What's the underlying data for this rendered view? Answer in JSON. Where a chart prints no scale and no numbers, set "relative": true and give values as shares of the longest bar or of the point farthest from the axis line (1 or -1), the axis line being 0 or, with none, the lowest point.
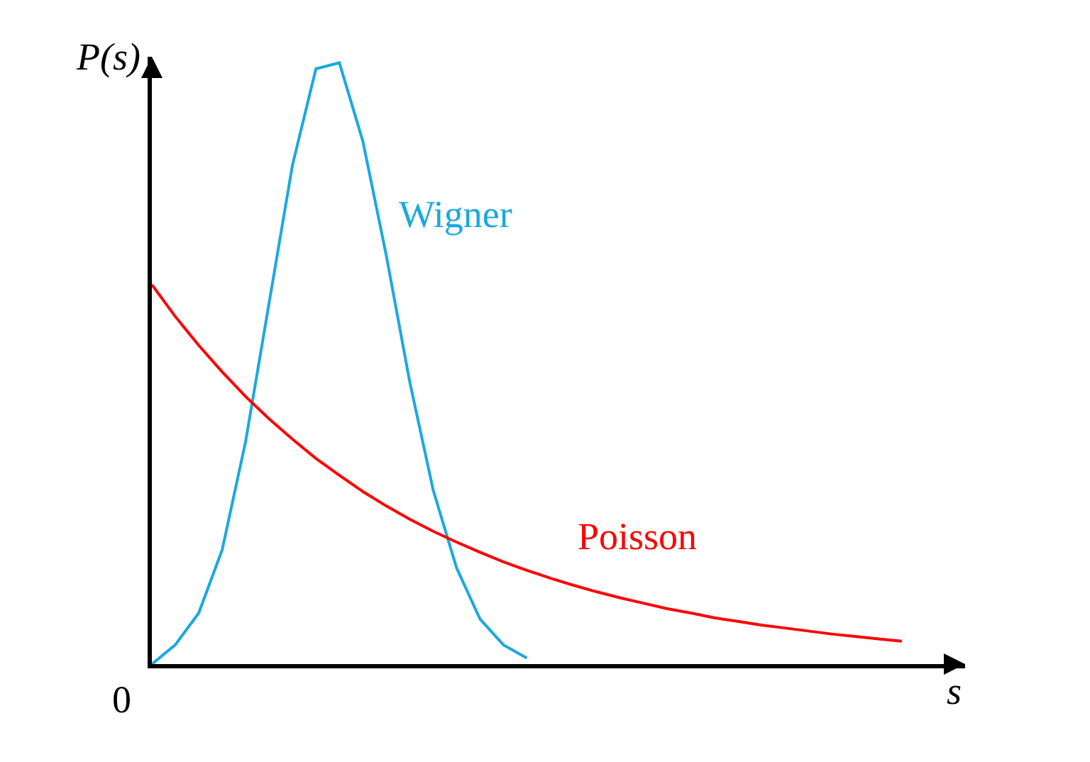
{
  "chart_data": {
    "type": "line",
    "relative": true,
    "xlabel": "s",
    "ylabel": "P(s)",
    "annotations": [
      "0"
    ],
    "categories": [
      null,
      null,
      null,
      null,
      null,
      null,
      null,
      null,
      null,
      null,
      null,
      null,
      null,
      null,
      null,
      null,
      null,
      null,
      null,
      null,
      null,
      null,
      null,
      null,
      null,
      null,
      null,
      null,
      null,
      null,
      null,
      null,
      null
    ],
    "series": [
      {
        "name": "Wigner",
        "color": "#1ba8e0",
        "values": [
          0,
          0.032,
          0.085,
          0.19,
          0.37,
          0.6,
          0.83,
          0.99,
          1,
          0.87,
          0.68,
          0.47,
          0.29,
          0.16,
          0.075,
          0.032,
          0.01,
          null,
          null,
          null,
          null,
          null,
          null,
          null,
          null,
          null,
          null,
          null,
          null,
          null,
          null,
          null,
          null
        ]
      },
      {
        "name": "Poisson",
        "color": "#ff0000",
        "values": [
          0.631,
          0.578,
          0.53,
          0.486,
          0.445,
          0.408,
          0.374,
          0.342,
          0.314,
          0.287,
          0.263,
          0.241,
          0.221,
          0.203,
          0.186,
          0.17,
          0.156,
          0.143,
          0.131,
          0.12,
          0.11,
          0.101,
          0.092,
          0.085,
          0.077,
          0.071,
          0.065,
          0.06,
          0.055,
          0.05,
          0.046,
          0.042,
          0.038
        ]
      }
    ],
    "legend": false,
    "marker": "none",
    "line_style": "solid"
  }
}
